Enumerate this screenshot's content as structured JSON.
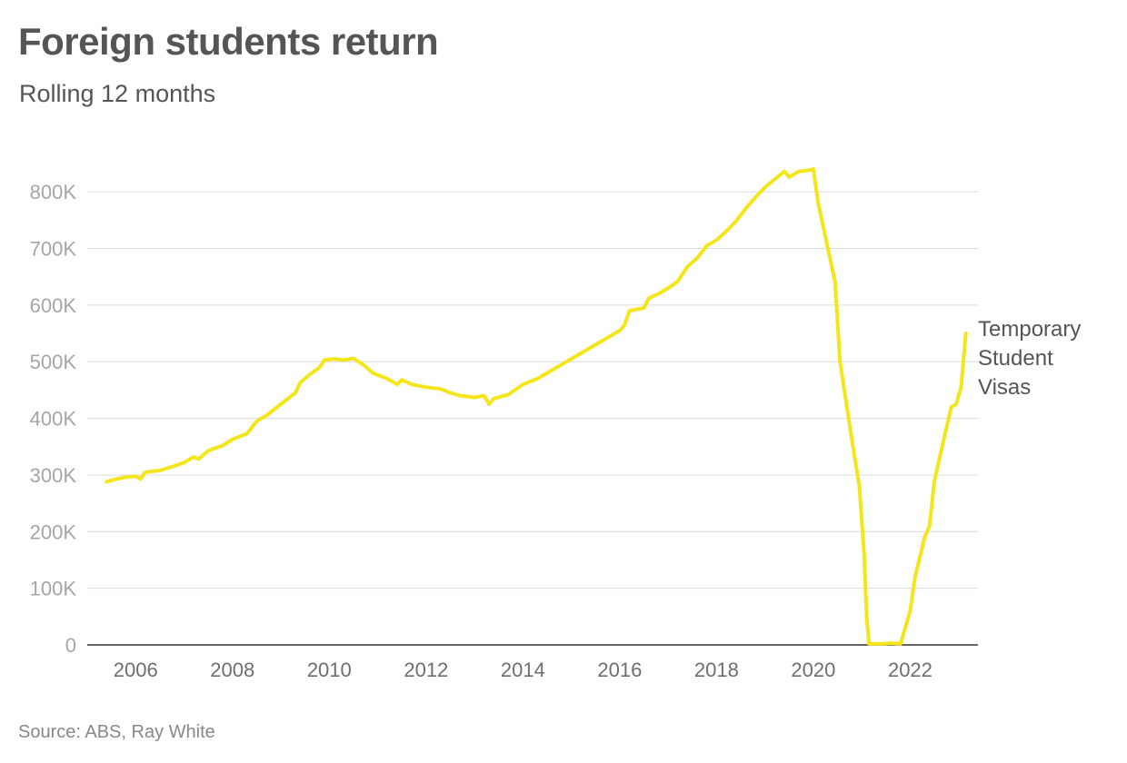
{
  "header": {
    "title": "Foreign students return",
    "subtitle": "Rolling 12 months"
  },
  "footer": {
    "source": "Source: ABS, Ray White"
  },
  "chart_data": {
    "type": "line",
    "x_type": "date (decimal year)",
    "xlim": [
      2005.0,
      2023.4
    ],
    "ylim": [
      0,
      850000
    ],
    "x_ticks": [
      2006,
      2008,
      2010,
      2012,
      2014,
      2016,
      2018,
      2020,
      2022
    ],
    "x_tick_labels": [
      "2006",
      "2008",
      "2010",
      "2012",
      "2014",
      "2016",
      "2018",
      "2020",
      "2022"
    ],
    "y_ticks": [
      0,
      100000,
      200000,
      300000,
      400000,
      500000,
      600000,
      700000,
      800000
    ],
    "y_tick_labels": [
      "0",
      "100K",
      "200K",
      "300K",
      "400K",
      "500K",
      "600K",
      "700K",
      "800K"
    ],
    "grid": "horizontal",
    "legend": "direct label at line end",
    "series": [
      {
        "name": "Temporary Student Visas",
        "color": "#f5e51b",
        "points": [
          [
            2005.4,
            288000
          ],
          [
            2005.6,
            293000
          ],
          [
            2005.8,
            296000
          ],
          [
            2006.0,
            298000
          ],
          [
            2006.1,
            293000
          ],
          [
            2006.2,
            305000
          ],
          [
            2006.5,
            308000
          ],
          [
            2006.8,
            316000
          ],
          [
            2007.0,
            322000
          ],
          [
            2007.2,
            332000
          ],
          [
            2007.3,
            328000
          ],
          [
            2007.5,
            343000
          ],
          [
            2007.8,
            352000
          ],
          [
            2008.0,
            363000
          ],
          [
            2008.3,
            373000
          ],
          [
            2008.5,
            395000
          ],
          [
            2008.7,
            405000
          ],
          [
            2009.0,
            425000
          ],
          [
            2009.3,
            445000
          ],
          [
            2009.4,
            463000
          ],
          [
            2009.6,
            478000
          ],
          [
            2009.8,
            490000
          ],
          [
            2009.9,
            503000
          ],
          [
            2010.1,
            505000
          ],
          [
            2010.3,
            503000
          ],
          [
            2010.5,
            506000
          ],
          [
            2010.7,
            495000
          ],
          [
            2010.9,
            480000
          ],
          [
            2011.2,
            470000
          ],
          [
            2011.4,
            460000
          ],
          [
            2011.5,
            468000
          ],
          [
            2011.7,
            460000
          ],
          [
            2012.0,
            455000
          ],
          [
            2012.3,
            452000
          ],
          [
            2012.5,
            445000
          ],
          [
            2012.7,
            440000
          ],
          [
            2013.0,
            437000
          ],
          [
            2013.2,
            440000
          ],
          [
            2013.3,
            425000
          ],
          [
            2013.4,
            435000
          ],
          [
            2013.7,
            442000
          ],
          [
            2014.0,
            460000
          ],
          [
            2014.3,
            470000
          ],
          [
            2014.6,
            485000
          ],
          [
            2014.9,
            500000
          ],
          [
            2015.2,
            515000
          ],
          [
            2015.5,
            530000
          ],
          [
            2015.8,
            545000
          ],
          [
            2016.0,
            555000
          ],
          [
            2016.1,
            565000
          ],
          [
            2016.2,
            590000
          ],
          [
            2016.5,
            595000
          ],
          [
            2016.6,
            612000
          ],
          [
            2016.8,
            620000
          ],
          [
            2017.0,
            630000
          ],
          [
            2017.2,
            642000
          ],
          [
            2017.4,
            668000
          ],
          [
            2017.6,
            683000
          ],
          [
            2017.8,
            705000
          ],
          [
            2018.0,
            715000
          ],
          [
            2018.2,
            730000
          ],
          [
            2018.4,
            748000
          ],
          [
            2018.6,
            770000
          ],
          [
            2018.8,
            790000
          ],
          [
            2019.0,
            808000
          ],
          [
            2019.2,
            822000
          ],
          [
            2019.4,
            836000
          ],
          [
            2019.5,
            826000
          ],
          [
            2019.7,
            836000
          ],
          [
            2019.9,
            838000
          ],
          [
            2020.0,
            840000
          ],
          [
            2020.1,
            780000
          ],
          [
            2020.3,
            700000
          ],
          [
            2020.45,
            640000
          ],
          [
            2020.55,
            500000
          ],
          [
            2020.8,
            360000
          ],
          [
            2020.95,
            280000
          ],
          [
            2021.05,
            160000
          ],
          [
            2021.1,
            50000
          ],
          [
            2021.15,
            2000
          ],
          [
            2021.4,
            2000
          ],
          [
            2021.6,
            3000
          ],
          [
            2021.8,
            2000
          ],
          [
            2022.0,
            60000
          ],
          [
            2022.1,
            120000
          ],
          [
            2022.3,
            190000
          ],
          [
            2022.4,
            210000
          ],
          [
            2022.5,
            290000
          ],
          [
            2022.7,
            365000
          ],
          [
            2022.85,
            420000
          ],
          [
            2022.95,
            425000
          ],
          [
            2023.05,
            455000
          ],
          [
            2023.15,
            550000
          ]
        ]
      }
    ]
  }
}
